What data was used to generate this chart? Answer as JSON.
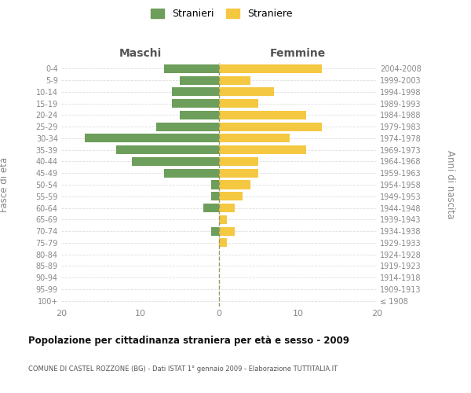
{
  "age_groups": [
    "100+",
    "95-99",
    "90-94",
    "85-89",
    "80-84",
    "75-79",
    "70-74",
    "65-69",
    "60-64",
    "55-59",
    "50-54",
    "45-49",
    "40-44",
    "35-39",
    "30-34",
    "25-29",
    "20-24",
    "15-19",
    "10-14",
    "5-9",
    "0-4"
  ],
  "birth_years": [
    "≤ 1908",
    "1909-1913",
    "1914-1918",
    "1919-1923",
    "1924-1928",
    "1929-1933",
    "1934-1938",
    "1939-1943",
    "1944-1948",
    "1949-1953",
    "1954-1958",
    "1959-1963",
    "1964-1968",
    "1969-1973",
    "1974-1978",
    "1979-1983",
    "1984-1988",
    "1989-1993",
    "1994-1998",
    "1999-2003",
    "2004-2008"
  ],
  "maschi": [
    0,
    0,
    0,
    0,
    0,
    0,
    1,
    0,
    2,
    1,
    1,
    7,
    11,
    13,
    17,
    8,
    5,
    6,
    6,
    5,
    7
  ],
  "femmine": [
    0,
    0,
    0,
    0,
    0,
    1,
    2,
    1,
    2,
    3,
    4,
    5,
    5,
    11,
    9,
    13,
    11,
    5,
    7,
    4,
    13
  ],
  "color_maschi": "#6d9e5b",
  "color_femmine": "#f5c842",
  "title": "Popolazione per cittadinanza straniera per età e sesso - 2009",
  "subtitle": "COMUNE DI CASTEL ROZZONE (BG) - Dati ISTAT 1° gennaio 2009 - Elaborazione TUTTITALIA.IT",
  "ylabel_left": "Fasce di età",
  "ylabel_right": "Anni di nascita",
  "xlabel_maschi": "Maschi",
  "xlabel_femmine": "Femmine",
  "legend_maschi": "Stranieri",
  "legend_femmine": "Straniere",
  "xlim": 20,
  "background_color": "#ffffff",
  "grid_color": "#dddddd"
}
